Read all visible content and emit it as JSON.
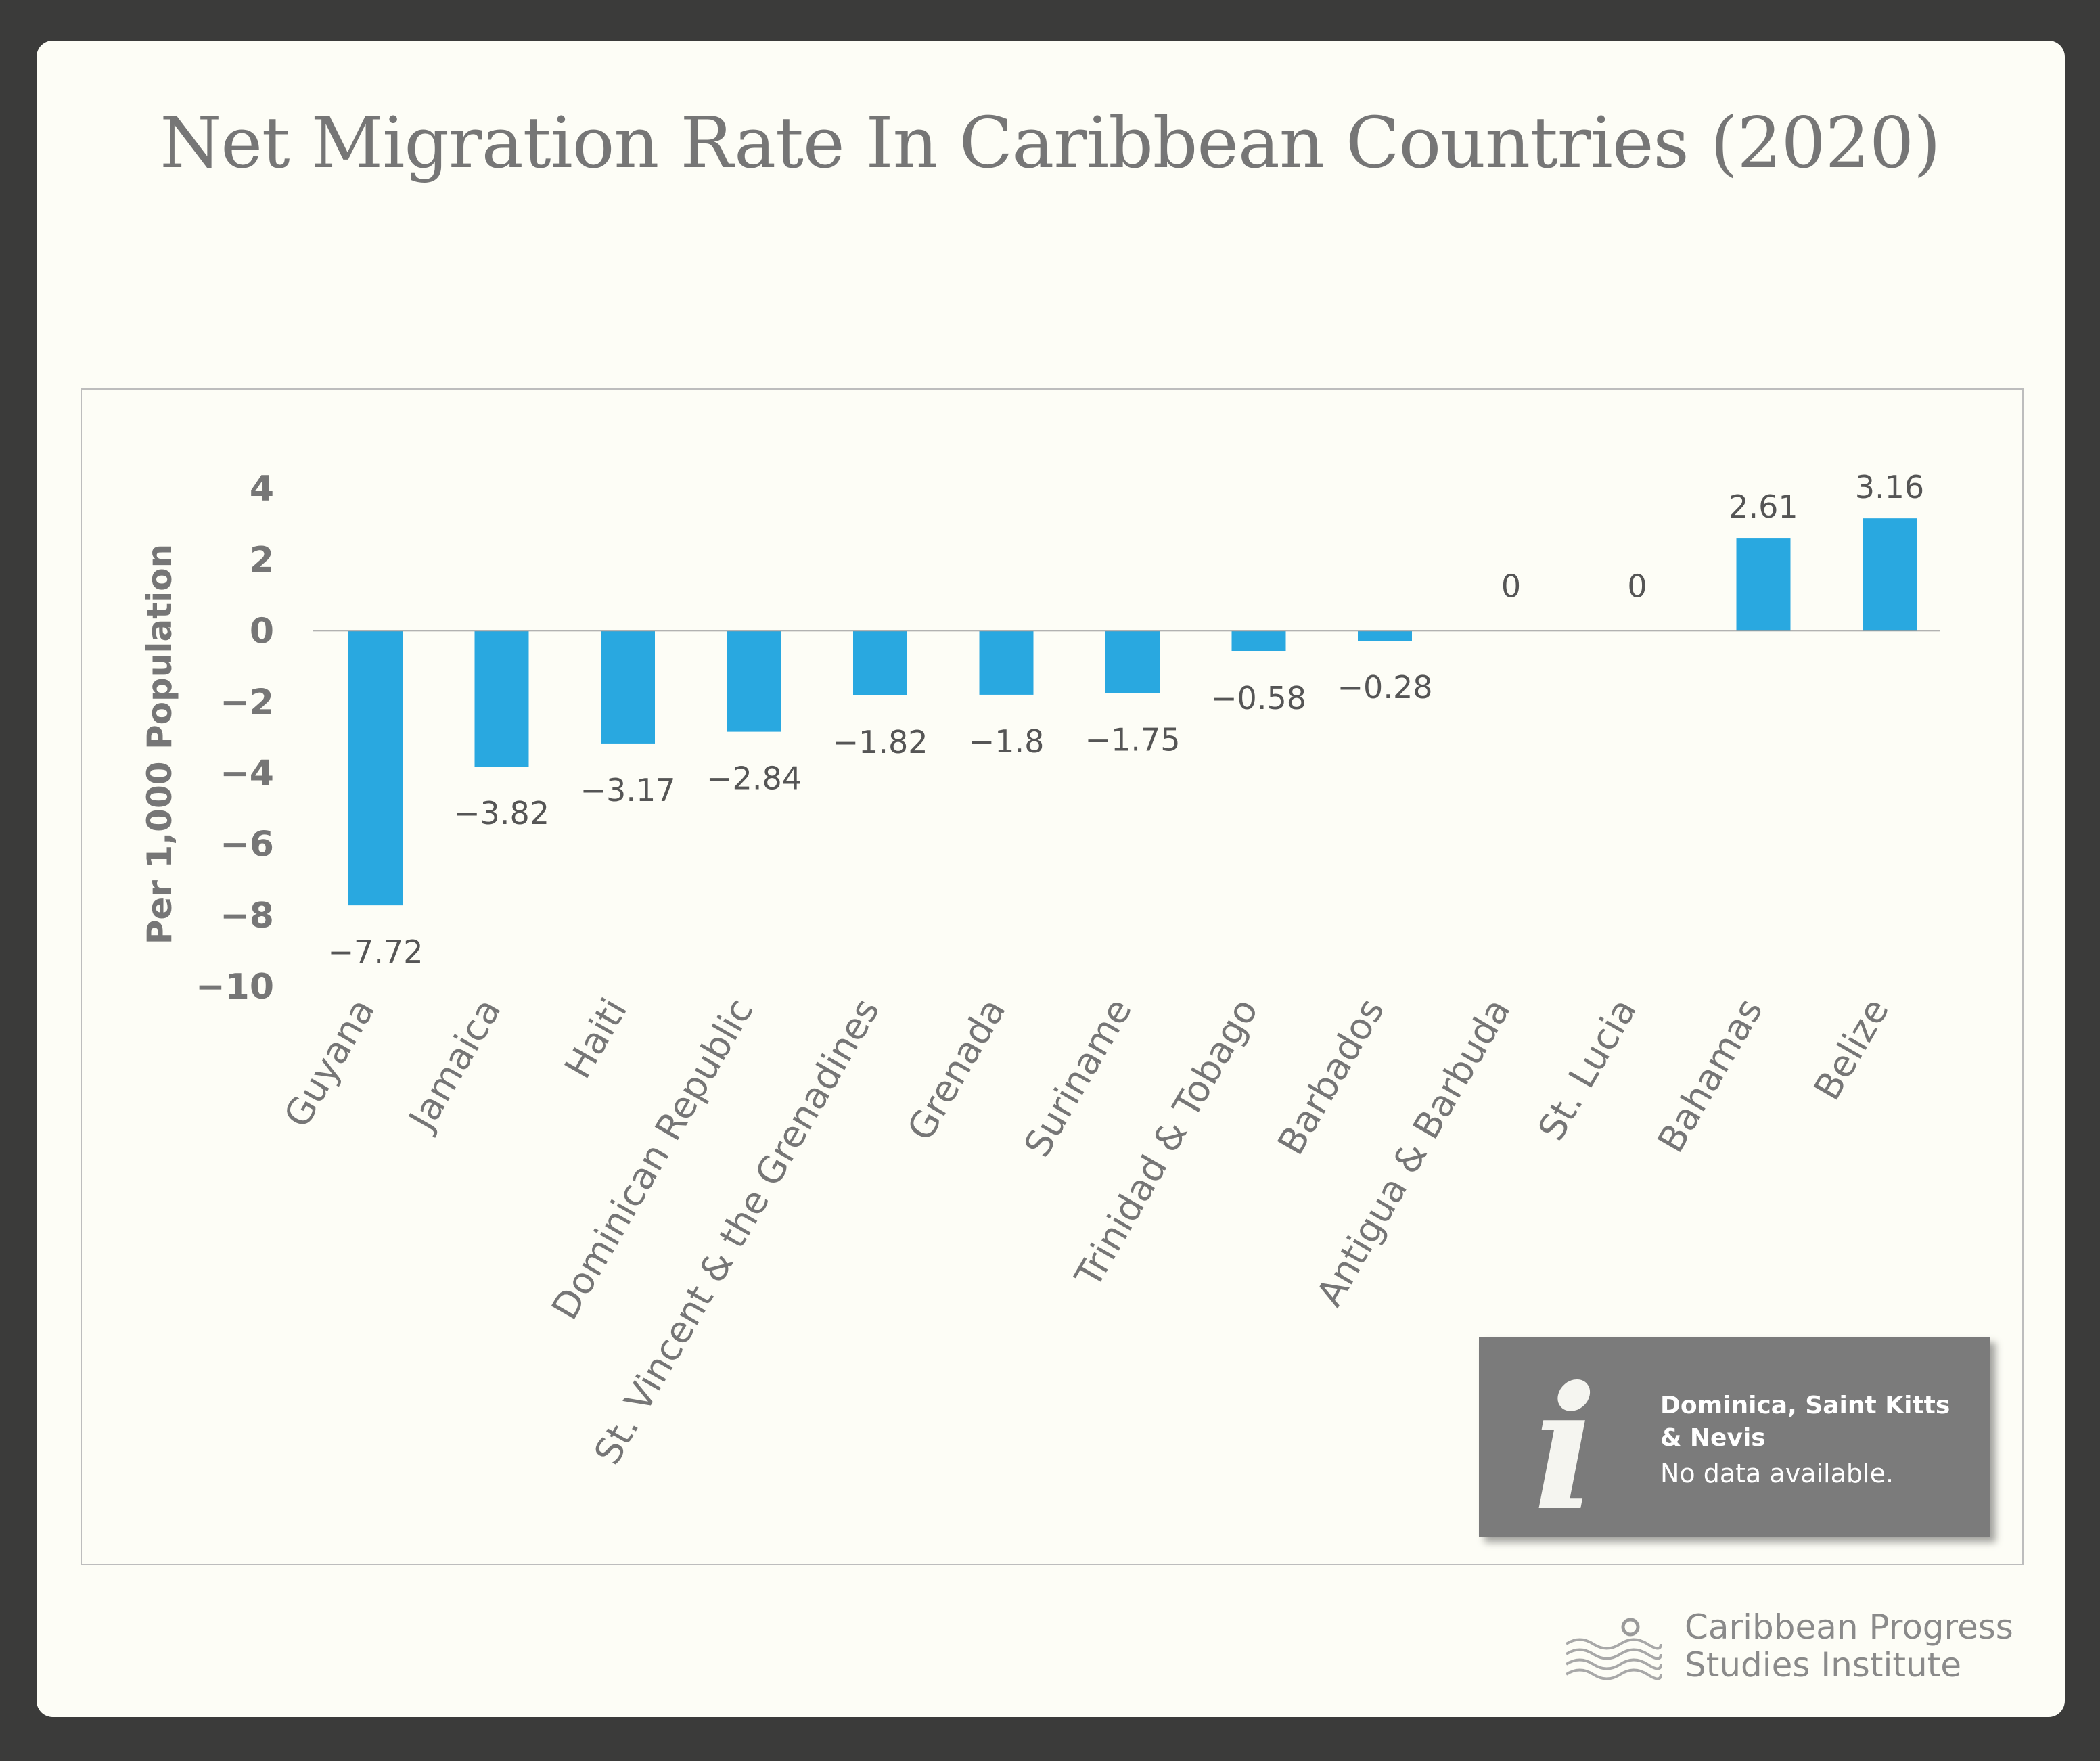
{
  "title": "Net Migration Rate In Caribbean Countries (2020)",
  "chart_data": {
    "type": "bar",
    "ylabel": "Per 1,000 Population",
    "xlabel": "",
    "ylim": [
      -10,
      4
    ],
    "yticks": [
      4,
      2,
      0,
      -2,
      -4,
      -6,
      -8,
      -10
    ],
    "ytick_labels": [
      "4",
      "2",
      "0",
      "−2",
      "−4",
      "−6",
      "−8",
      "−10"
    ],
    "categories": [
      "Guyana",
      "Jamaica",
      "Haiti",
      "Dominican Republic",
      "St. Vincent & the Grenadines",
      "Grenada",
      "Suriname",
      "Trinidad & Tobago",
      "Barbados",
      "Antigua & Barbuda",
      "St. Lucia",
      "Bahamas",
      "Belize"
    ],
    "values": [
      -7.72,
      -3.82,
      -3.17,
      -2.84,
      -1.82,
      -1.8,
      -1.75,
      -0.58,
      -0.28,
      0,
      0,
      2.61,
      3.16
    ],
    "data_labels": [
      "−7.72",
      "−3.82",
      "−3.17",
      "−2.84",
      "−1.82",
      "−1.8",
      "−1.75",
      "−0.58",
      "−0.28",
      "0",
      "0",
      "2.61",
      "3.16"
    ],
    "bar_color": "#29a8e0",
    "grid": false,
    "legend": "none"
  },
  "note": {
    "icon": "info-icon",
    "icon_glyph": "i",
    "heading": "Dominica, Saint Kitts & Nevis",
    "text": "No data available."
  },
  "logo": {
    "icon": "waves-sun-logo-icon",
    "line1": "Caribbean Progress",
    "line2": "Studies Institute"
  },
  "colors": {
    "background": "#3b3b3a",
    "card": "#fdfdf6",
    "text": "#767676",
    "note_box": "#7b7b7b"
  }
}
